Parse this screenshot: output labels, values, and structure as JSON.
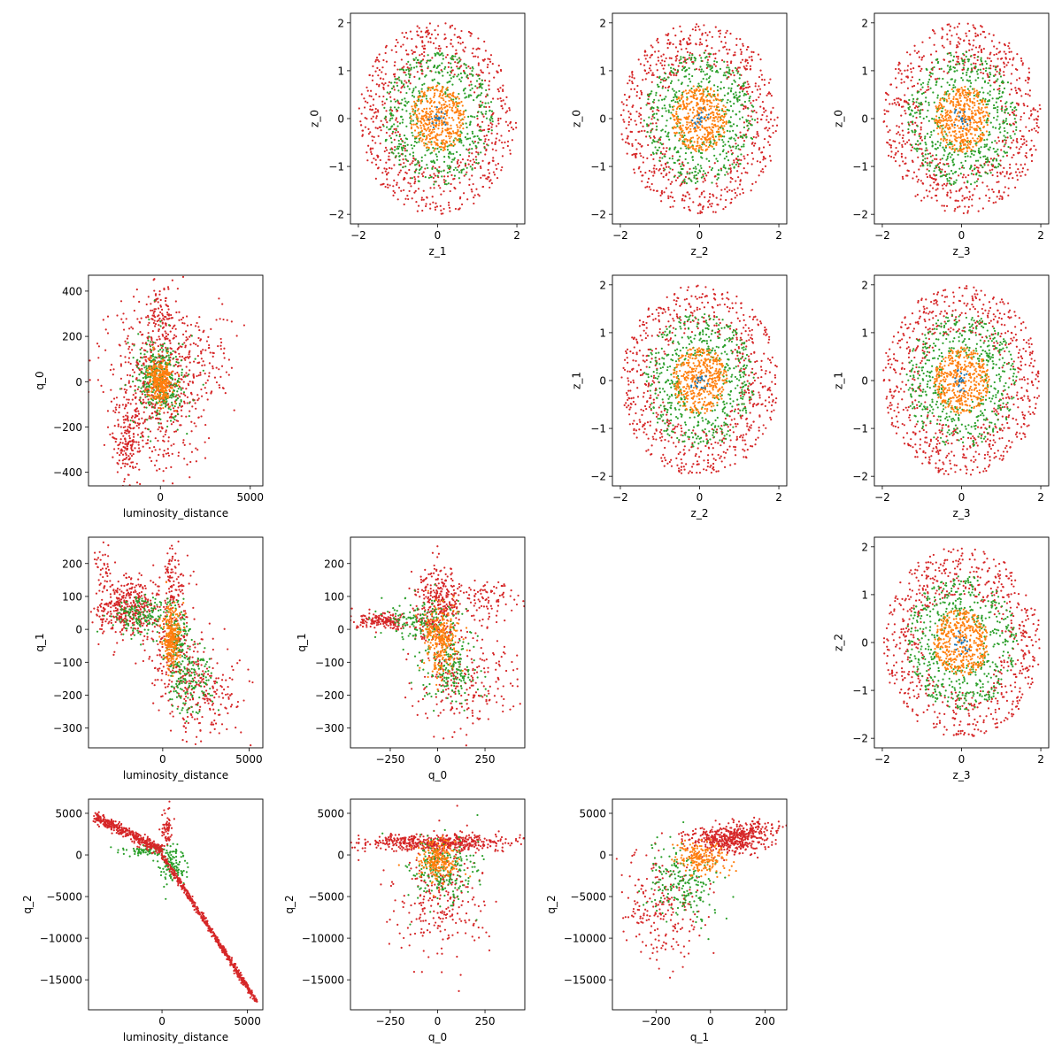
{
  "figure": {
    "colors": {
      "inner": "#ff7f0e",
      "middle": "#2ca02c",
      "outer": "#d62728",
      "center": "#1f77b4",
      "axes": "#000000",
      "background": "#ffffff"
    },
    "legend": "none",
    "grid": false
  },
  "chart_data": [
    {
      "type": "scatter",
      "row": 0,
      "col": 1,
      "xlabel": "z_1",
      "ylabel": "z_0",
      "xlim": [
        -2.2,
        2.2
      ],
      "ylim": [
        -2.2,
        2.2
      ],
      "xticks": [
        -2,
        0,
        2
      ],
      "yticks": [
        -2,
        -1,
        0,
        1,
        2
      ],
      "xticklabels": [
        "−2",
        "0",
        "2"
      ],
      "yticklabels": [
        "−2",
        "−1",
        "0",
        "1",
        "2"
      ],
      "pattern": "rings",
      "rings": [
        0.7,
        1.4,
        2.0
      ],
      "series": [
        {
          "color": "#d62728",
          "min_radius": 1.0,
          "max_radius": 2.0
        },
        {
          "color": "#2ca02c",
          "min_radius": 0.5,
          "max_radius": 1.4
        },
        {
          "color": "#ff7f0e",
          "min_radius": 0.0,
          "max_radius": 0.7
        }
      ]
    },
    {
      "type": "scatter",
      "row": 0,
      "col": 2,
      "xlabel": "z_2",
      "ylabel": "z_0",
      "xlim": [
        -2.2,
        2.2
      ],
      "ylim": [
        -2.2,
        2.2
      ],
      "xticks": [
        -2,
        0,
        2
      ],
      "yticks": [
        -2,
        -1,
        0,
        1,
        2
      ],
      "xticklabels": [
        "−2",
        "0",
        "2"
      ],
      "yticklabels": [
        "−2",
        "−1",
        "0",
        "1",
        "2"
      ],
      "pattern": "rings",
      "rings": [
        0.7,
        1.4,
        2.0
      ],
      "series": [
        {
          "color": "#d62728",
          "min_radius": 1.0,
          "max_radius": 2.0
        },
        {
          "color": "#2ca02c",
          "min_radius": 0.5,
          "max_radius": 1.4
        },
        {
          "color": "#ff7f0e",
          "min_radius": 0.0,
          "max_radius": 0.7
        }
      ]
    },
    {
      "type": "scatter",
      "row": 0,
      "col": 3,
      "xlabel": "z_3",
      "ylabel": "z_0",
      "xlim": [
        -2.2,
        2.2
      ],
      "ylim": [
        -2.2,
        2.2
      ],
      "xticks": [
        -2,
        0,
        2
      ],
      "yticks": [
        -2,
        -1,
        0,
        1,
        2
      ],
      "xticklabels": [
        "−2",
        "0",
        "2"
      ],
      "yticklabels": [
        "−2",
        "−1",
        "0",
        "1",
        "2"
      ],
      "pattern": "rings",
      "rings": [
        0.7,
        1.4,
        2.0
      ],
      "series": [
        {
          "color": "#d62728",
          "min_radius": 1.0,
          "max_radius": 2.0
        },
        {
          "color": "#2ca02c",
          "min_radius": 0.5,
          "max_radius": 1.4
        },
        {
          "color": "#ff7f0e",
          "min_radius": 0.0,
          "max_radius": 0.7
        }
      ]
    },
    {
      "type": "scatter",
      "row": 1,
      "col": 2,
      "xlabel": "z_2",
      "ylabel": "z_1",
      "xlim": [
        -2.2,
        2.2
      ],
      "ylim": [
        -2.2,
        2.2
      ],
      "xticks": [
        -2,
        0,
        2
      ],
      "yticks": [
        -2,
        -1,
        0,
        1,
        2
      ],
      "xticklabels": [
        "−2",
        "0",
        "2"
      ],
      "yticklabels": [
        "−2",
        "−1",
        "0",
        "1",
        "2"
      ],
      "pattern": "rings",
      "rings": [
        0.7,
        1.4,
        2.0
      ],
      "series": [
        {
          "color": "#d62728",
          "min_radius": 1.0,
          "max_radius": 2.0
        },
        {
          "color": "#2ca02c",
          "min_radius": 0.5,
          "max_radius": 1.4
        },
        {
          "color": "#ff7f0e",
          "min_radius": 0.0,
          "max_radius": 0.7
        }
      ]
    },
    {
      "type": "scatter",
      "row": 1,
      "col": 3,
      "xlabel": "z_3",
      "ylabel": "z_1",
      "xlim": [
        -2.2,
        2.2
      ],
      "ylim": [
        -2.2,
        2.2
      ],
      "xticks": [
        -2,
        0,
        2
      ],
      "yticks": [
        -2,
        -1,
        0,
        1,
        2
      ],
      "xticklabels": [
        "−2",
        "0",
        "2"
      ],
      "yticklabels": [
        "−2",
        "−1",
        "0",
        "1",
        "2"
      ],
      "pattern": "rings",
      "rings": [
        0.7,
        1.4,
        2.0
      ],
      "series": [
        {
          "color": "#d62728",
          "min_radius": 1.0,
          "max_radius": 2.0
        },
        {
          "color": "#2ca02c",
          "min_radius": 0.5,
          "max_radius": 1.4
        },
        {
          "color": "#ff7f0e",
          "min_radius": 0.0,
          "max_radius": 0.7
        }
      ]
    },
    {
      "type": "scatter",
      "row": 2,
      "col": 3,
      "xlabel": "z_3",
      "ylabel": "z_2",
      "xlim": [
        -2.2,
        2.2
      ],
      "ylim": [
        -2.2,
        2.2
      ],
      "xticks": [
        -2,
        0,
        2
      ],
      "yticks": [
        -2,
        -1,
        0,
        1,
        2
      ],
      "xticklabels": [
        "−2",
        "0",
        "2"
      ],
      "yticklabels": [
        "−2",
        "−1",
        "0",
        "1",
        "2"
      ],
      "pattern": "rings",
      "rings": [
        0.7,
        1.4,
        2.0
      ],
      "series": [
        {
          "color": "#d62728",
          "min_radius": 1.0,
          "max_radius": 2.0
        },
        {
          "color": "#2ca02c",
          "min_radius": 0.5,
          "max_radius": 1.4
        },
        {
          "color": "#ff7f0e",
          "min_radius": 0.0,
          "max_radius": 0.7
        }
      ]
    },
    {
      "type": "scatter",
      "row": 1,
      "col": 0,
      "xlabel": "luminosity_distance",
      "ylabel": "q_0",
      "xlim": [
        -4000,
        5700
      ],
      "ylim": [
        -460,
        470
      ],
      "xticks": [
        0,
        5000
      ],
      "yticks": [
        -400,
        -200,
        0,
        200,
        400
      ],
      "xticklabels": [
        "0",
        "5000"
      ],
      "yticklabels": [
        "−400",
        "−200",
        "0",
        "200",
        "400"
      ],
      "pattern": "clusters",
      "series": [
        {
          "color": "#d62728",
          "clusters": [
            {
              "cx": -300,
              "cy": 0,
              "sx": 1300,
              "sy": 200,
              "n": 600
            },
            {
              "cx": -1800,
              "cy": -260,
              "sx": 450,
              "sy": 110,
              "n": 160
            },
            {
              "cx": 1600,
              "cy": 80,
              "sx": 1300,
              "sy": 110,
              "n": 160
            },
            {
              "cx": 100,
              "cy": 320,
              "sx": 300,
              "sy": 60,
              "n": 60
            }
          ]
        },
        {
          "color": "#2ca02c",
          "clusters": [
            {
              "cx": 0,
              "cy": 0,
              "sx": 750,
              "sy": 95,
              "n": 340
            }
          ]
        },
        {
          "color": "#ff7f0e",
          "clusters": [
            {
              "cx": 0,
              "cy": 0,
              "sx": 320,
              "sy": 45,
              "n": 320
            }
          ]
        }
      ]
    },
    {
      "type": "scatter",
      "row": 2,
      "col": 0,
      "xlabel": "luminosity_distance",
      "ylabel": "q_1",
      "xlim": [
        -4300,
        5800
      ],
      "ylim": [
        -360,
        280
      ],
      "xticks": [
        0,
        5000
      ],
      "yticks": [
        -300,
        -200,
        -100,
        0,
        100,
        200
      ],
      "xticklabels": [
        "0",
        "5000"
      ],
      "yticklabels": [
        "−300",
        "−200",
        "−100",
        "0",
        "100",
        "200"
      ],
      "pattern": "clusters",
      "series": [
        {
          "color": "#d62728",
          "clusters": [
            {
              "cx": -2000,
              "cy": 70,
              "sx": 900,
              "sy": 45,
              "n": 420
            },
            {
              "cx": 700,
              "cy": -60,
              "sx": 800,
              "sy": 90,
              "n": 220
            },
            {
              "cx": 2600,
              "cy": -190,
              "sx": 1200,
              "sy": 70,
              "n": 200
            },
            {
              "cx": 600,
              "cy": 150,
              "sx": 350,
              "sy": 50,
              "n": 80
            },
            {
              "cx": -3500,
              "cy": 200,
              "sx": 250,
              "sy": 35,
              "n": 30
            }
          ]
        },
        {
          "color": "#2ca02c",
          "clusters": [
            {
              "cx": -1200,
              "cy": 40,
              "sx": 800,
              "sy": 30,
              "n": 160
            },
            {
              "cx": 800,
              "cy": -40,
              "sx": 400,
              "sy": 70,
              "n": 160
            },
            {
              "cx": 1700,
              "cy": -160,
              "sx": 600,
              "sy": 50,
              "n": 130
            }
          ]
        },
        {
          "color": "#ff7f0e",
          "clusters": [
            {
              "cx": 500,
              "cy": -30,
              "sx": 250,
              "sy": 45,
              "n": 260
            }
          ]
        }
      ]
    },
    {
      "type": "scatter",
      "row": 2,
      "col": 1,
      "xlabel": "q_0",
      "ylabel": "q_1",
      "xlim": [
        -460,
        460
      ],
      "ylim": [
        -360,
        280
      ],
      "xticks": [
        -250,
        0,
        250
      ],
      "yticks": [
        -300,
        -200,
        -100,
        0,
        100,
        200
      ],
      "xticklabels": [
        "−250",
        "0",
        "250"
      ],
      "yticklabels": [
        "−300",
        "−200",
        "−100",
        "0",
        "100",
        "200"
      ],
      "pattern": "clusters",
      "series": [
        {
          "color": "#d62728",
          "clusters": [
            {
              "cx": -280,
              "cy": 25,
              "sx": 80,
              "sy": 12,
              "n": 180
            },
            {
              "cx": 0,
              "cy": 80,
              "sx": 60,
              "sy": 55,
              "n": 320
            },
            {
              "cx": 150,
              "cy": -150,
              "sx": 140,
              "sy": 90,
              "n": 250
            },
            {
              "cx": 250,
              "cy": 90,
              "sx": 90,
              "sy": 25,
              "n": 90
            }
          ]
        },
        {
          "color": "#2ca02c",
          "clusters": [
            {
              "cx": -80,
              "cy": 30,
              "sx": 100,
              "sy": 40,
              "n": 160
            },
            {
              "cx": 80,
              "cy": -130,
              "sx": 70,
              "sy": 50,
              "n": 170
            }
          ]
        },
        {
          "color": "#ff7f0e",
          "clusters": [
            {
              "cx": 20,
              "cy": -30,
              "sx": 45,
              "sy": 50,
              "n": 280
            }
          ]
        }
      ]
    },
    {
      "type": "scatter",
      "row": 3,
      "col": 0,
      "xlabel": "luminosity_distance",
      "ylabel": "q_2",
      "xlim": [
        -4300,
        5900
      ],
      "ylim": [
        -18600,
        6700
      ],
      "xticks": [
        0,
        5000
      ],
      "yticks": [
        -15000,
        -10000,
        -5000,
        0,
        5000
      ],
      "xticklabels": [
        "0",
        "5000"
      ],
      "yticklabels": [
        "−15000",
        "−10000",
        "−5000",
        "0",
        "5000"
      ],
      "pattern": "clusters",
      "series": [
        {
          "color": "#2ca02c",
          "clusters": [
            {
              "cx": 600,
              "cy": -1200,
              "sx": 350,
              "sy": 1100,
              "n": 120
            },
            {
              "cx": -800,
              "cy": 500,
              "sx": 700,
              "sy": 300,
              "n": 80
            }
          ]
        },
        {
          "color": "#d62728",
          "clusters": [
            {
              "cx": 300,
              "cy": 3000,
              "sx": 150,
              "sy": 1200,
              "n": 60
            }
          ]
        }
      ],
      "lines": [
        {
          "color": "#d62728",
          "from": [
            -3900,
            4600
          ],
          "to": [
            0,
            500
          ],
          "n": 420,
          "jitter": 0.012
        },
        {
          "color": "#d62728",
          "from": [
            0,
            0
          ],
          "to": [
            5500,
            -17500
          ],
          "n": 560,
          "jitter": 0.006
        }
      ]
    },
    {
      "type": "scatter",
      "row": 3,
      "col": 1,
      "xlabel": "q_0",
      "ylabel": "q_2",
      "xlim": [
        -460,
        460
      ],
      "ylim": [
        -18600,
        6700
      ],
      "xticks": [
        -250,
        0,
        250
      ],
      "yticks": [
        -15000,
        -10000,
        -5000,
        0,
        5000
      ],
      "xticklabels": [
        "−250",
        "0",
        "250"
      ],
      "yticklabels": [
        "−15000",
        "−10000",
        "−5000",
        "0",
        "5000"
      ],
      "pattern": "clusters",
      "series": [
        {
          "color": "#d62728",
          "clusters": [
            {
              "cx": 0,
              "cy": 1500,
              "sx": 200,
              "sy": 500,
              "n": 520
            },
            {
              "cx": 20,
              "cy": -5500,
              "sx": 120,
              "sy": 3500,
              "n": 260
            }
          ]
        },
        {
          "color": "#2ca02c",
          "clusters": [
            {
              "cx": 20,
              "cy": -2000,
              "sx": 90,
              "sy": 2200,
              "n": 220
            }
          ]
        },
        {
          "color": "#ff7f0e",
          "clusters": [
            {
              "cx": 0,
              "cy": -800,
              "sx": 55,
              "sy": 1200,
              "n": 220
            }
          ]
        }
      ]
    },
    {
      "type": "scatter",
      "row": 3,
      "col": 2,
      "xlabel": "q_1",
      "ylabel": "q_2",
      "xlim": [
        -360,
        280
      ],
      "ylim": [
        -18600,
        6700
      ],
      "xticks": [
        -200,
        0,
        200
      ],
      "yticks": [
        -15000,
        -10000,
        -5000,
        0,
        5000
      ],
      "xticklabels": [
        "−200",
        "0",
        "200"
      ],
      "yticklabels": [
        "−15000",
        "−10000",
        "−5000",
        "0",
        "5000"
      ],
      "pattern": "clusters",
      "series": [
        {
          "color": "#d62728",
          "clusters": [
            {
              "cx": 70,
              "cy": 1800,
              "sx": 70,
              "sy": 800,
              "n": 450
            },
            {
              "cx": -180,
              "cy": -6500,
              "sx": 80,
              "sy": 3500,
              "n": 220
            },
            {
              "cx": 160,
              "cy": 3200,
              "sx": 60,
              "sy": 600,
              "n": 90
            }
          ]
        },
        {
          "color": "#2ca02c",
          "clusters": [
            {
              "cx": -100,
              "cy": -3500,
              "sx": 70,
              "sy": 2200,
              "n": 200
            }
          ]
        },
        {
          "color": "#ff7f0e",
          "clusters": [
            {
              "cx": -30,
              "cy": -500,
              "sx": 45,
              "sy": 1000,
              "n": 200
            }
          ]
        }
      ]
    }
  ]
}
